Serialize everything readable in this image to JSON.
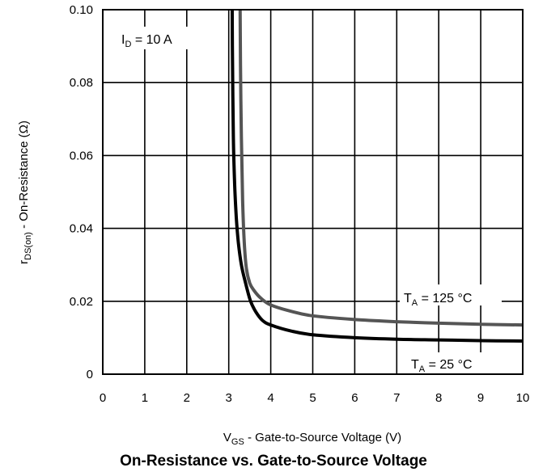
{
  "chart_data": {
    "type": "line",
    "title": "On-Resistance vs. Gate-to-Source Voltage",
    "xlabel": {
      "main": "V",
      "sub": "GS",
      "rest": " - Gate-to-Source Voltage (V)"
    },
    "ylabel": {
      "main": "r",
      "sub": "DS(on)",
      "rest": " - On-Resistance (Ω)"
    },
    "xlim": [
      0,
      10
    ],
    "ylim": [
      0,
      0.1
    ],
    "grid": true,
    "x_ticks": [
      "0",
      "1",
      "2",
      "3",
      "4",
      "5",
      "6",
      "7",
      "8",
      "9",
      "10"
    ],
    "y_ticks": [
      "0",
      "0.02",
      "0.04",
      "0.06",
      "0.08",
      "0.10"
    ],
    "annotation": {
      "main": "I",
      "sub": "D",
      "rest": " = 10 A"
    },
    "series": [
      {
        "name": "TA = 125 °C",
        "label": {
          "main": "T",
          "sub": "A",
          "rest": " = 125 °C"
        },
        "color": "#555555",
        "x": [
          3.27,
          3.28,
          3.3,
          3.33,
          3.37,
          3.42,
          3.5,
          3.6,
          3.75,
          4.0,
          4.5,
          5.0,
          6.0,
          7.0,
          8.0,
          9.0,
          10.0
        ],
        "y": [
          0.102,
          0.085,
          0.065,
          0.048,
          0.036,
          0.029,
          0.025,
          0.023,
          0.021,
          0.019,
          0.0172,
          0.016,
          0.015,
          0.0144,
          0.014,
          0.0137,
          0.0135
        ]
      },
      {
        "name": "TA = 25 °C",
        "label": {
          "main": "T",
          "sub": "A",
          "rest": " = 25 °C"
        },
        "color": "#000000",
        "x": [
          3.08,
          3.09,
          3.11,
          3.14,
          3.18,
          3.23,
          3.3,
          3.4,
          3.52,
          3.65,
          3.8,
          4.0,
          4.5,
          5.0,
          6.0,
          7.0,
          8.0,
          9.0,
          10.0
        ],
        "y": [
          0.102,
          0.085,
          0.065,
          0.052,
          0.043,
          0.036,
          0.03,
          0.025,
          0.02,
          0.017,
          0.0148,
          0.0135,
          0.0118,
          0.0108,
          0.01,
          0.0096,
          0.0094,
          0.0092,
          0.0091
        ]
      }
    ]
  }
}
